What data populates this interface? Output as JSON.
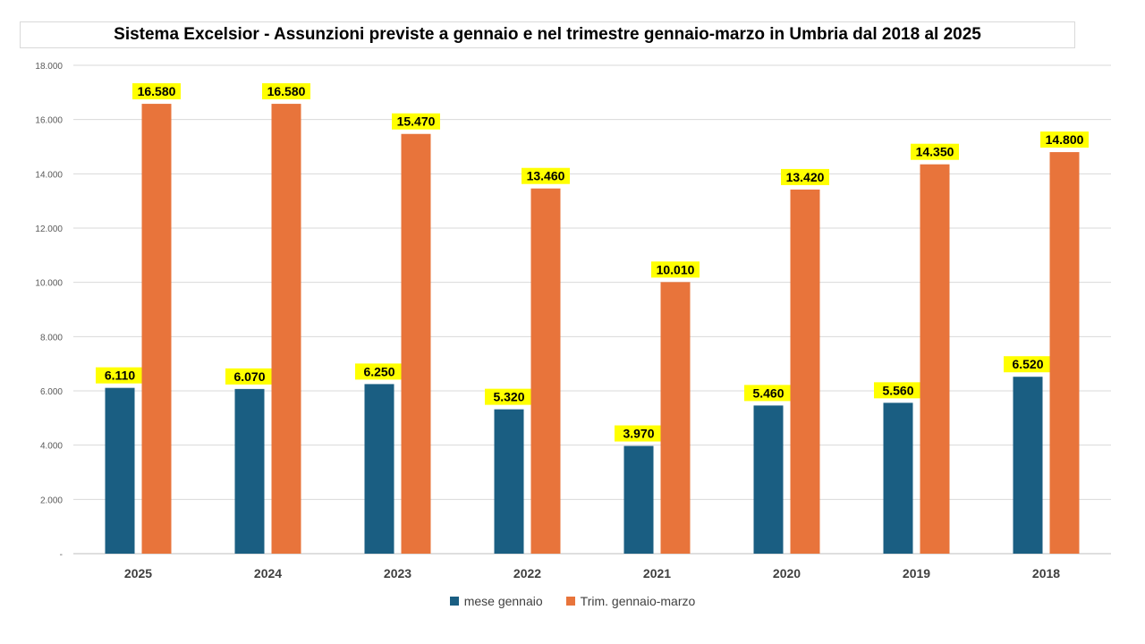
{
  "chart_data": {
    "type": "bar",
    "title": "Sistema Excelsior - Assunzioni previste a gennaio e nel trimestre gennaio-marzo in Umbria dal 2018 al 2025",
    "categories": [
      "2025",
      "2024",
      "2023",
      "2022",
      "2021",
      "2020",
      "2019",
      "2018"
    ],
    "series": [
      {
        "name": "mese gennaio",
        "color": "#1a5e82",
        "values": [
          6110,
          6070,
          6250,
          5320,
          3970,
          5460,
          5560,
          6520
        ],
        "labels": [
          "6.110",
          "6.070",
          "6.250",
          "5.320",
          "3.970",
          "5.460",
          "5.560",
          "6.520"
        ]
      },
      {
        "name": "Trim. gennaio-marzo",
        "color": "#e8743b",
        "values": [
          16580,
          16580,
          15470,
          13460,
          10010,
          13420,
          14350,
          14800
        ],
        "labels": [
          "16.580",
          "16.580",
          "15.470",
          "13.460",
          "10.010",
          "13.420",
          "14.350",
          "14.800"
        ]
      }
    ],
    "ylim": [
      0,
      18000
    ],
    "yticks": [
      0,
      2000,
      4000,
      6000,
      8000,
      10000,
      12000,
      14000,
      16000,
      18000
    ],
    "ytick_labels": [
      "-",
      "2.000",
      "4.000",
      "6.000",
      "8.000",
      "10.000",
      "12.000",
      "14.000",
      "16.000",
      "18.000"
    ],
    "grid": true,
    "legend_position": "bottom",
    "data_label_highlight": "#ffff00"
  }
}
